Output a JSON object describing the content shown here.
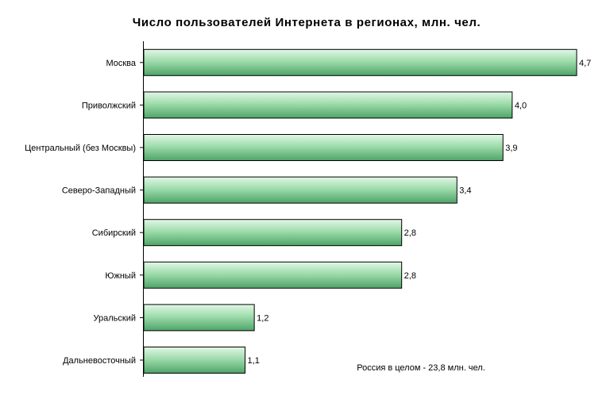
{
  "chart_data": {
    "type": "bar",
    "orientation": "horizontal",
    "title": "Число пользователей Интернета  в регионах, млн. чел.",
    "categories": [
      "Москва",
      "Приволжский",
      "Центральный (без Москвы)",
      "Северо-Западный",
      "Сибирский",
      "Южный",
      "Уральский",
      "Дальневосточный"
    ],
    "values": [
      4.7,
      4.0,
      3.9,
      3.4,
      2.8,
      2.8,
      1.2,
      1.1
    ],
    "value_labels": [
      "4,7",
      "4,0",
      "3,9",
      "3,4",
      "2,8",
      "2,8",
      "1,2",
      "1,1"
    ],
    "annotation": "Россия в целом - 23,8 млн. чел.",
    "xlim": [
      0,
      4.7
    ],
    "grid": false,
    "legend": "none",
    "colors": {
      "bar_light": "#e2f7e6",
      "bar_dark": "#4ea468",
      "bar_stroke": "#000000"
    }
  }
}
